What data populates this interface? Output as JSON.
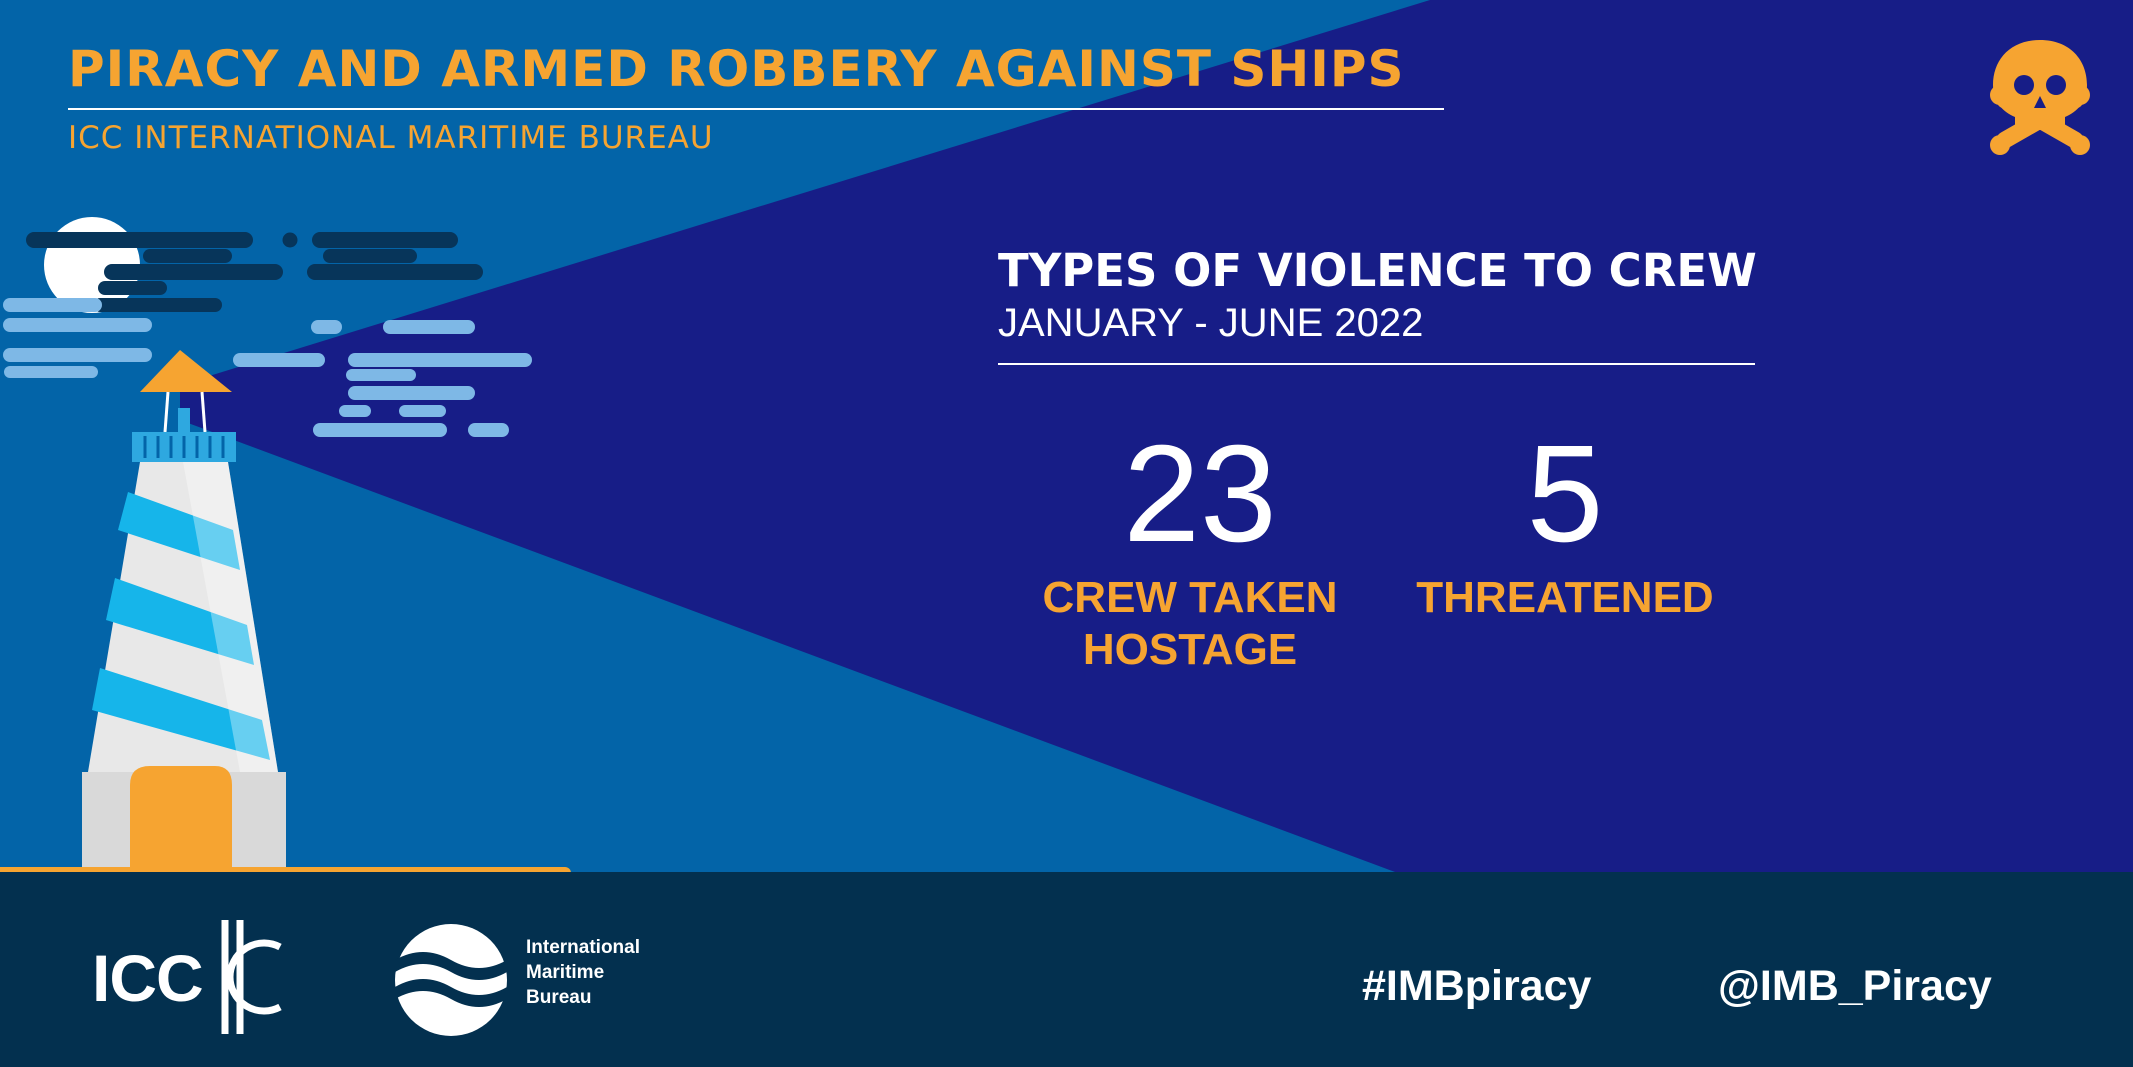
{
  "header": {
    "title": "PIRACY AND ARMED ROBBERY AGAINST SHIPS",
    "subtitle": "ICC INTERNATIONAL MARITIME BUREAU",
    "corner_icon": "skull-crossbones-icon"
  },
  "section": {
    "title": "TYPES OF VIOLENCE TO CREW",
    "period": "JANUARY - JUNE 2022"
  },
  "stats": [
    {
      "value": "23",
      "label": "CREW TAKEN\nHOSTAGE"
    },
    {
      "value": "5",
      "label": "THREATENED"
    }
  ],
  "footer": {
    "icc_logo_text": "ICC",
    "imb_logo_text": "International\nMaritime\nBureau",
    "hashtag": "#IMBpiracy",
    "handle": "@IMB_Piracy"
  },
  "colors": {
    "background_light": "#0364a8",
    "background_dark": "#171d87",
    "footer": "#03304f",
    "accent": "#f6a431",
    "text": "#ffffff"
  }
}
